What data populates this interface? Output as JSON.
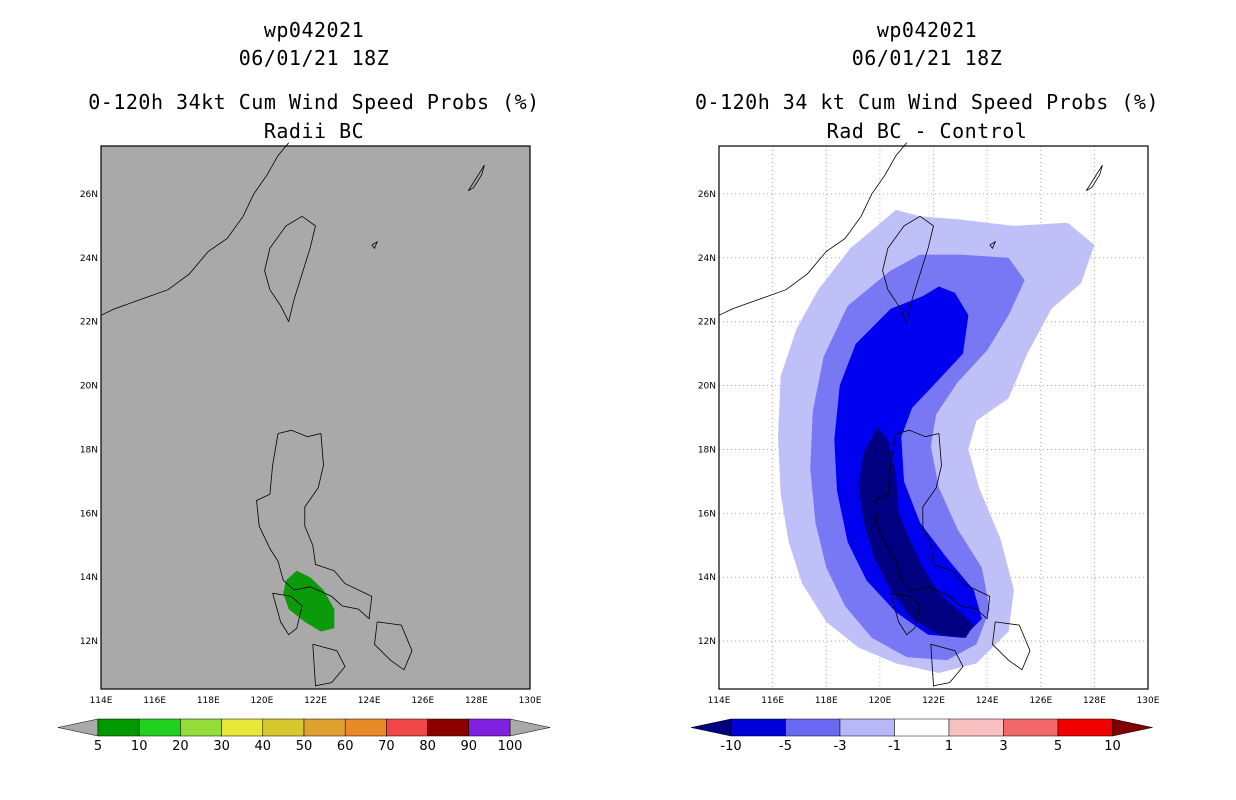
{
  "chart_data": [
    {
      "type": "heatmap",
      "storm_id": "wp042021",
      "datetime": "06/01/21 18Z",
      "title": "0-120h 34kt Cum Wind Speed Probs (%)",
      "subtitle": "Radii BC",
      "xlim": [
        114,
        130
      ],
      "ylim": [
        10.5,
        27.5
      ],
      "x_ticks": [
        "114E",
        "116E",
        "118E",
        "120E",
        "122E",
        "124E",
        "126E",
        "128E",
        "130E"
      ],
      "y_ticks": [
        "12N",
        "14N",
        "16N",
        "18N",
        "20N",
        "22N",
        "24N",
        "26N"
      ],
      "background": "#a9a9a9",
      "colorbar": {
        "labels": [
          "5",
          "10",
          "20",
          "30",
          "40",
          "50",
          "60",
          "70",
          "80",
          "90",
          "100"
        ],
        "colors": [
          "#009a00",
          "#22d022",
          "#94dc38",
          "#e8e838",
          "#d8c830",
          "#e0a030",
          "#e88a28",
          "#f04848",
          "#8c0000",
          "#8020e0"
        ]
      },
      "field": [
        {
          "level": "5-10",
          "color": "#0a9a0a",
          "points": [
            [
              120.9,
              13.9
            ],
            [
              121.3,
              14.2
            ],
            [
              121.8,
              14.0
            ],
            [
              122.3,
              13.6
            ],
            [
              122.7,
              13.0
            ],
            [
              122.7,
              12.4
            ],
            [
              122.2,
              12.3
            ],
            [
              121.6,
              12.6
            ],
            [
              121.0,
              13.0
            ],
            [
              120.8,
              13.5
            ]
          ]
        }
      ]
    },
    {
      "type": "heatmap",
      "storm_id": "wp042021",
      "datetime": "06/01/21 18Z",
      "title": "0-120h 34 kt Cum Wind Speed Probs (%)",
      "subtitle": "Rad BC - Control",
      "xlim": [
        114,
        130
      ],
      "ylim": [
        10.5,
        27.5
      ],
      "x_ticks": [
        "114E",
        "116E",
        "118E",
        "120E",
        "122E",
        "124E",
        "126E",
        "128E",
        "130E"
      ],
      "y_ticks": [
        "12N",
        "14N",
        "16N",
        "18N",
        "20N",
        "22N",
        "24N",
        "26N"
      ],
      "background": "#ffffff",
      "grid": true,
      "colorbar": {
        "labels": [
          "-10",
          "-5",
          "-3",
          "-1",
          "1",
          "3",
          "5",
          "10"
        ],
        "colors": [
          "#0000d8",
          "#6868f0",
          "#b8b8f8",
          "#ffffff",
          "#f8c0c0",
          "#f06868",
          "#f00000"
        ]
      },
      "field": [
        {
          "level": "-3 to -1",
          "color": "#c0c0f8",
          "points": [
            [
              120.6,
              25.5
            ],
            [
              121.5,
              25.3
            ],
            [
              123.0,
              25.2
            ],
            [
              125.0,
              25.0
            ],
            [
              127.0,
              25.1
            ],
            [
              128.0,
              24.4
            ],
            [
              127.5,
              23.2
            ],
            [
              126.4,
              22.4
            ],
            [
              125.5,
              21.0
            ],
            [
              124.8,
              19.6
            ],
            [
              123.6,
              18.9
            ],
            [
              123.3,
              18.0
            ],
            [
              123.7,
              16.8
            ],
            [
              124.5,
              15.2
            ],
            [
              125.0,
              13.6
            ],
            [
              124.8,
              12.3
            ],
            [
              123.6,
              11.3
            ],
            [
              122.2,
              11.0
            ],
            [
              120.6,
              11.3
            ],
            [
              119.2,
              11.8
            ],
            [
              118.0,
              12.6
            ],
            [
              117.1,
              13.8
            ],
            [
              116.6,
              15.1
            ],
            [
              116.3,
              16.6
            ],
            [
              116.2,
              18.4
            ],
            [
              116.3,
              20.3
            ],
            [
              116.9,
              21.8
            ],
            [
              117.7,
              23.0
            ],
            [
              118.9,
              24.3
            ]
          ]
        },
        {
          "level": "-5 to -3",
          "color": "#7878f4",
          "points": [
            [
              121.5,
              24.1
            ],
            [
              123.0,
              24.1
            ],
            [
              124.8,
              24.0
            ],
            [
              125.4,
              23.3
            ],
            [
              124.8,
              22.2
            ],
            [
              124.0,
              21.1
            ],
            [
              122.9,
              20.1
            ],
            [
              122.1,
              19.1
            ],
            [
              121.9,
              18.1
            ],
            [
              122.2,
              16.8
            ],
            [
              122.9,
              15.5
            ],
            [
              123.8,
              14.3
            ],
            [
              124.1,
              13.0
            ],
            [
              123.6,
              11.9
            ],
            [
              122.5,
              11.4
            ],
            [
              121.0,
              11.5
            ],
            [
              119.7,
              12.1
            ],
            [
              118.7,
              13.1
            ],
            [
              118.0,
              14.3
            ],
            [
              117.6,
              15.7
            ],
            [
              117.4,
              17.4
            ],
            [
              117.5,
              19.2
            ],
            [
              117.9,
              20.9
            ],
            [
              118.8,
              22.5
            ],
            [
              120.4,
              23.6
            ]
          ]
        },
        {
          "level": "-10 to -5",
          "color": "#0000f0",
          "points": [
            [
              120.4,
              22.4
            ],
            [
              121.6,
              22.8
            ],
            [
              122.2,
              23.1
            ],
            [
              122.8,
              22.9
            ],
            [
              123.3,
              22.2
            ],
            [
              123.1,
              21.0
            ],
            [
              122.1,
              20.1
            ],
            [
              121.2,
              19.3
            ],
            [
              120.8,
              18.4
            ],
            [
              120.9,
              17.0
            ],
            [
              121.5,
              15.7
            ],
            [
              122.5,
              14.6
            ],
            [
              123.5,
              13.6
            ],
            [
              123.8,
              12.7
            ],
            [
              123.1,
              12.1
            ],
            [
              121.8,
              12.2
            ],
            [
              120.6,
              12.9
            ],
            [
              119.5,
              13.9
            ],
            [
              118.8,
              15.1
            ],
            [
              118.4,
              16.7
            ],
            [
              118.3,
              18.3
            ],
            [
              118.5,
              20.0
            ],
            [
              119.1,
              21.3
            ]
          ]
        },
        {
          "level": "< -10",
          "color": "#000080",
          "points": [
            [
              119.9,
              18.7
            ],
            [
              120.3,
              18.3
            ],
            [
              120.6,
              17.2
            ],
            [
              120.7,
              16.0
            ],
            [
              121.1,
              15.2
            ],
            [
              121.6,
              14.3
            ],
            [
              122.2,
              13.5
            ],
            [
              123.0,
              12.9
            ],
            [
              123.5,
              12.5
            ],
            [
              123.2,
              12.1
            ],
            [
              122.2,
              12.2
            ],
            [
              121.2,
              12.7
            ],
            [
              120.4,
              13.6
            ],
            [
              119.8,
              14.6
            ],
            [
              119.4,
              15.7
            ],
            [
              119.2,
              16.9
            ],
            [
              119.4,
              17.9
            ]
          ]
        }
      ]
    }
  ]
}
